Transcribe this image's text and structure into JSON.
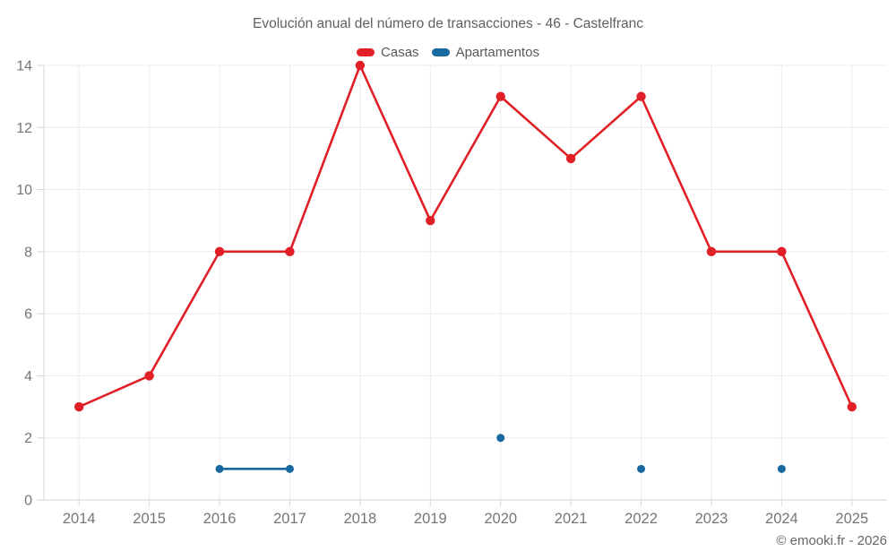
{
  "chart_data": {
    "type": "line",
    "title": "Evolución anual del número de transacciones - 46 - Castelfranc",
    "categories": [
      "2014",
      "2015",
      "2016",
      "2017",
      "2018",
      "2019",
      "2020",
      "2021",
      "2022",
      "2023",
      "2024",
      "2025"
    ],
    "series": [
      {
        "name": "Casas",
        "color": "#e01f26",
        "values": [
          3,
          4,
          8,
          8,
          14,
          9,
          13,
          11,
          13,
          8,
          8,
          3
        ]
      },
      {
        "name": "Apartamentos",
        "color": "#1769a0",
        "values": [
          null,
          null,
          1,
          1,
          null,
          null,
          2,
          null,
          1,
          null,
          1,
          null
        ]
      }
    ],
    "xlabel": "",
    "ylabel": "",
    "ylim": [
      0,
      14
    ],
    "ytick_step": 2,
    "yticks": [
      0,
      2,
      4,
      6,
      8,
      10,
      12,
      14
    ],
    "grid": true,
    "legend_position": "top",
    "footer": "© emooki.fr - 2026",
    "colors": {
      "grid": "#ebebeb",
      "axis": "#d6d6d6",
      "tick_label": "#757575",
      "title": "#5f5f5f",
      "legend_label": "#595959",
      "footer": "#666666"
    }
  }
}
